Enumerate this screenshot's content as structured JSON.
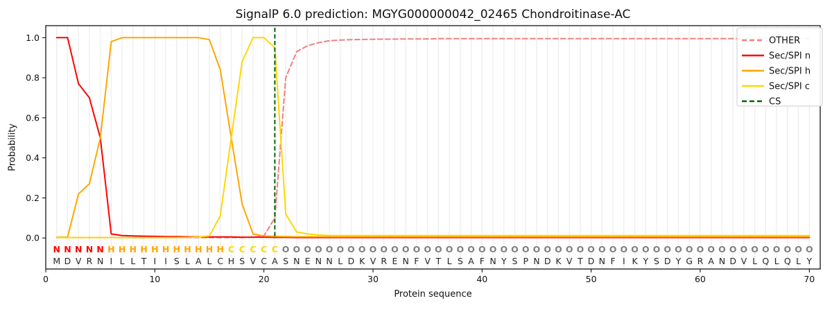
{
  "title": "SignalP 6.0 prediction: MGYG000000042_02465 Chondroitinase-AC",
  "chart_data": {
    "type": "line",
    "title": "SignalP 6.0 prediction: MGYG000000042_02465 Chondroitinase-AC",
    "xlabel": "Protein sequence",
    "ylabel": "Probability",
    "xlim": [
      0,
      71
    ],
    "ylim": [
      -0.155,
      1.06
    ],
    "x_ticks": [
      "0",
      "10",
      "20",
      "30",
      "40",
      "50",
      "60",
      "70"
    ],
    "x_tick_values": [
      0,
      10,
      20,
      30,
      40,
      50,
      60,
      70
    ],
    "y_ticks": [
      "0.0",
      "0.2",
      "0.4",
      "0.6",
      "0.8",
      "1.0"
    ],
    "y_tick_values": [
      0.0,
      0.2,
      0.4,
      0.6,
      0.8,
      1.0
    ],
    "grid": "vertical line at every residue position, color #efefef",
    "legend_position": "upper right",
    "positions_start": 1,
    "series": [
      {
        "name": "OTHER",
        "color": "#F08080",
        "dashed": true,
        "values": [
          0.002,
          0.002,
          0.002,
          0.002,
          0.002,
          0.002,
          0.002,
          0.002,
          0.002,
          0.002,
          0.002,
          0.002,
          0.002,
          0.002,
          0.002,
          0.002,
          0.002,
          0.002,
          0.004,
          0.01,
          0.1,
          0.8,
          0.93,
          0.96,
          0.975,
          0.985,
          0.988,
          0.99,
          0.991,
          0.992,
          0.9925,
          0.993,
          0.9935,
          0.994,
          0.994,
          0.995,
          0.995,
          0.995,
          0.995,
          0.995,
          0.995,
          0.995,
          0.995,
          0.995,
          0.995,
          0.995,
          0.995,
          0.995,
          0.995,
          0.995,
          0.995,
          0.995,
          0.995,
          0.995,
          0.995,
          0.995,
          0.995,
          0.995,
          0.995,
          0.995,
          0.995,
          0.995,
          0.995,
          0.995,
          0.995,
          0.995,
          0.995,
          0.995,
          0.995,
          0.995
        ]
      },
      {
        "name": "Sec/SPI n",
        "color": "#FF0000",
        "dashed": false,
        "values": [
          1.0,
          1.0,
          0.77,
          0.7,
          0.5,
          0.02,
          0.012,
          0.01,
          0.009,
          0.008,
          0.007,
          0.007,
          0.006,
          0.006,
          0.005,
          0.005,
          0.005,
          0.004,
          0.004,
          0.004,
          0.003,
          0.003,
          0.002,
          0.002,
          0.002,
          0.002,
          0.002,
          0.002,
          0.002,
          0.002,
          0.002,
          0.002,
          0.002,
          0.002,
          0.002,
          0.002,
          0.002,
          0.002,
          0.002,
          0.002,
          0.002,
          0.002,
          0.002,
          0.002,
          0.002,
          0.002,
          0.002,
          0.002,
          0.002,
          0.002,
          0.002,
          0.002,
          0.002,
          0.002,
          0.002,
          0.002,
          0.002,
          0.002,
          0.002,
          0.002,
          0.002,
          0.002,
          0.002,
          0.002,
          0.002,
          0.002,
          0.002,
          0.002,
          0.002,
          0.002
        ]
      },
      {
        "name": "Sec/SPI h",
        "color": "#FFA500",
        "dashed": false,
        "values": [
          0.004,
          0.005,
          0.22,
          0.27,
          0.5,
          0.98,
          1.0,
          1.0,
          1.0,
          1.0,
          1.0,
          1.0,
          1.0,
          1.0,
          0.99,
          0.84,
          0.5,
          0.17,
          0.02,
          0.01,
          0.008,
          0.007,
          0.006,
          0.006,
          0.006,
          0.006,
          0.006,
          0.006,
          0.006,
          0.006,
          0.006,
          0.006,
          0.006,
          0.006,
          0.006,
          0.006,
          0.006,
          0.006,
          0.006,
          0.006,
          0.006,
          0.006,
          0.006,
          0.006,
          0.006,
          0.006,
          0.006,
          0.006,
          0.006,
          0.006,
          0.006,
          0.006,
          0.006,
          0.006,
          0.006,
          0.006,
          0.006,
          0.006,
          0.006,
          0.006,
          0.006,
          0.006,
          0.006,
          0.006,
          0.006,
          0.006,
          0.006,
          0.006,
          0.006,
          0.006
        ]
      },
      {
        "name": "Sec/SPI c",
        "color": "#FFD700",
        "dashed": false,
        "values": [
          0.002,
          0.002,
          0.002,
          0.002,
          0.002,
          0.002,
          0.002,
          0.002,
          0.002,
          0.002,
          0.002,
          0.002,
          0.003,
          0.005,
          0.01,
          0.11,
          0.5,
          0.88,
          1.0,
          1.0,
          0.95,
          0.12,
          0.03,
          0.02,
          0.015,
          0.012,
          0.012,
          0.012,
          0.012,
          0.012,
          0.012,
          0.012,
          0.012,
          0.012,
          0.012,
          0.012,
          0.012,
          0.012,
          0.012,
          0.012,
          0.012,
          0.012,
          0.012,
          0.012,
          0.012,
          0.012,
          0.012,
          0.012,
          0.012,
          0.012,
          0.012,
          0.012,
          0.012,
          0.012,
          0.012,
          0.012,
          0.012,
          0.012,
          0.012,
          0.012,
          0.012,
          0.012,
          0.012,
          0.012,
          0.012,
          0.012,
          0.012,
          0.012,
          0.012,
          0.012
        ]
      }
    ],
    "cs_marker": {
      "name": "CS",
      "color": "#006400",
      "dashed": true,
      "position": 21
    },
    "sequence": "MDVRNILLTIISLALCHSVCASNENNLDKVRENFVTLSAFNYSPNDKVTDNFIKYSDYGRANDVLQLQLY",
    "region_labels": "NNNNNHHHHHHHHHHHCCCCCOOOOOOOOOOOOOOOOOOOOOOOOOOOOOOOOOOOOOOOOOOOOOOOOO",
    "region_colors": {
      "N": "#FF0000",
      "H": "#FFA500",
      "C": "#FFD700",
      "O": "#7F7F7F"
    },
    "sequence_color": "#262626",
    "legend": [
      "OTHER",
      "Sec/SPI n",
      "Sec/SPI h",
      "Sec/SPI c",
      "CS"
    ]
  }
}
